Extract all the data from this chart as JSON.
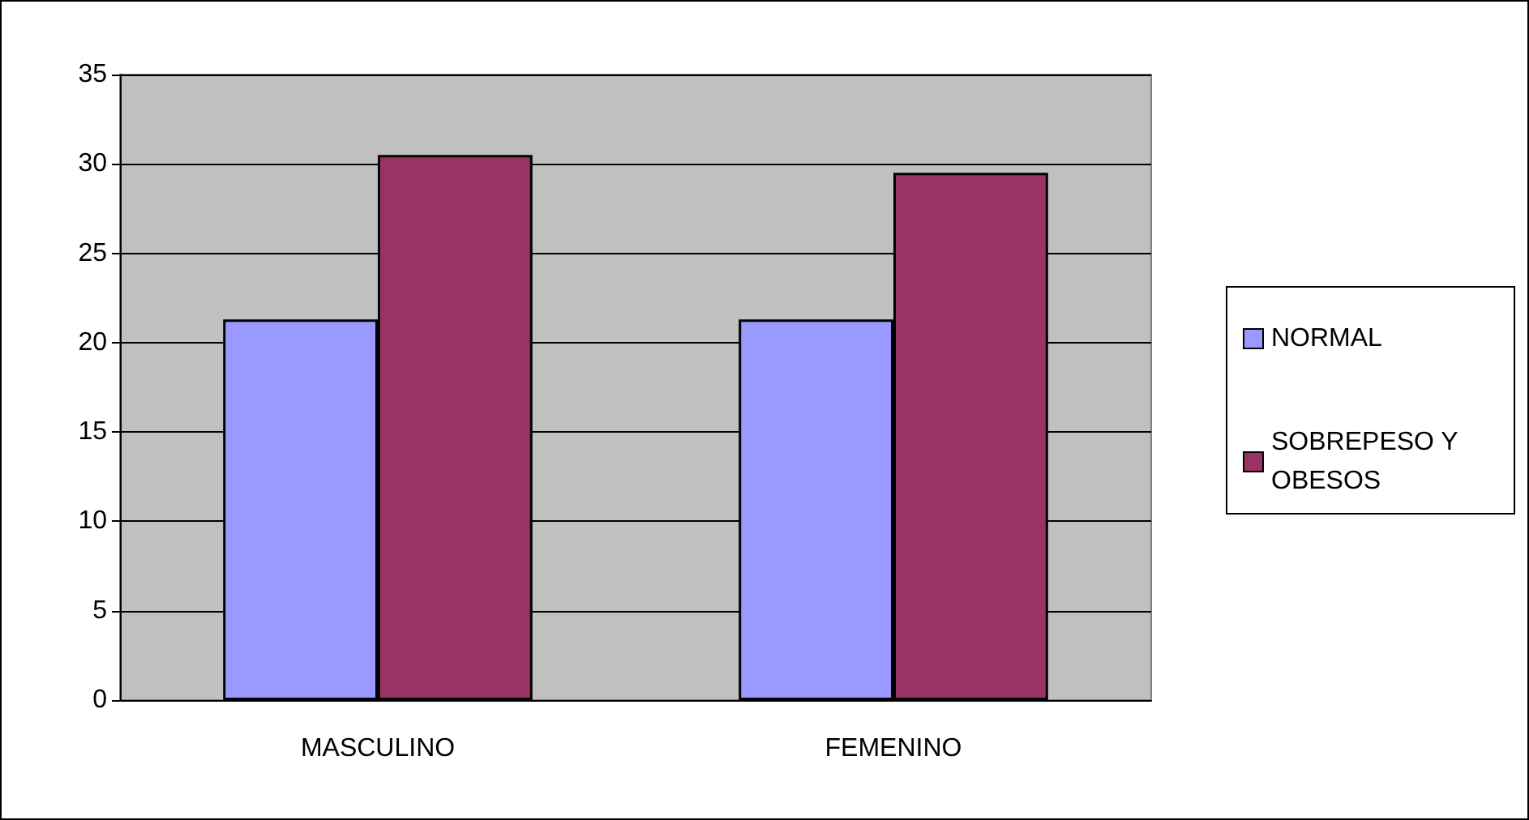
{
  "chart_data": {
    "type": "bar",
    "categories": [
      "MASCULINO",
      "FEMENINO"
    ],
    "series": [
      {
        "name": "NORMAL",
        "color": "#9999ff",
        "values": [
          21.3,
          21.3
        ]
      },
      {
        "name": "SOBREPESO Y OBESOS",
        "color": "#993366",
        "values": [
          30.5,
          29.5
        ]
      }
    ],
    "ylim": [
      0,
      35
    ],
    "yticks": [
      0,
      5,
      10,
      15,
      20,
      25,
      30,
      35
    ],
    "grid": "y",
    "legend": "right"
  }
}
